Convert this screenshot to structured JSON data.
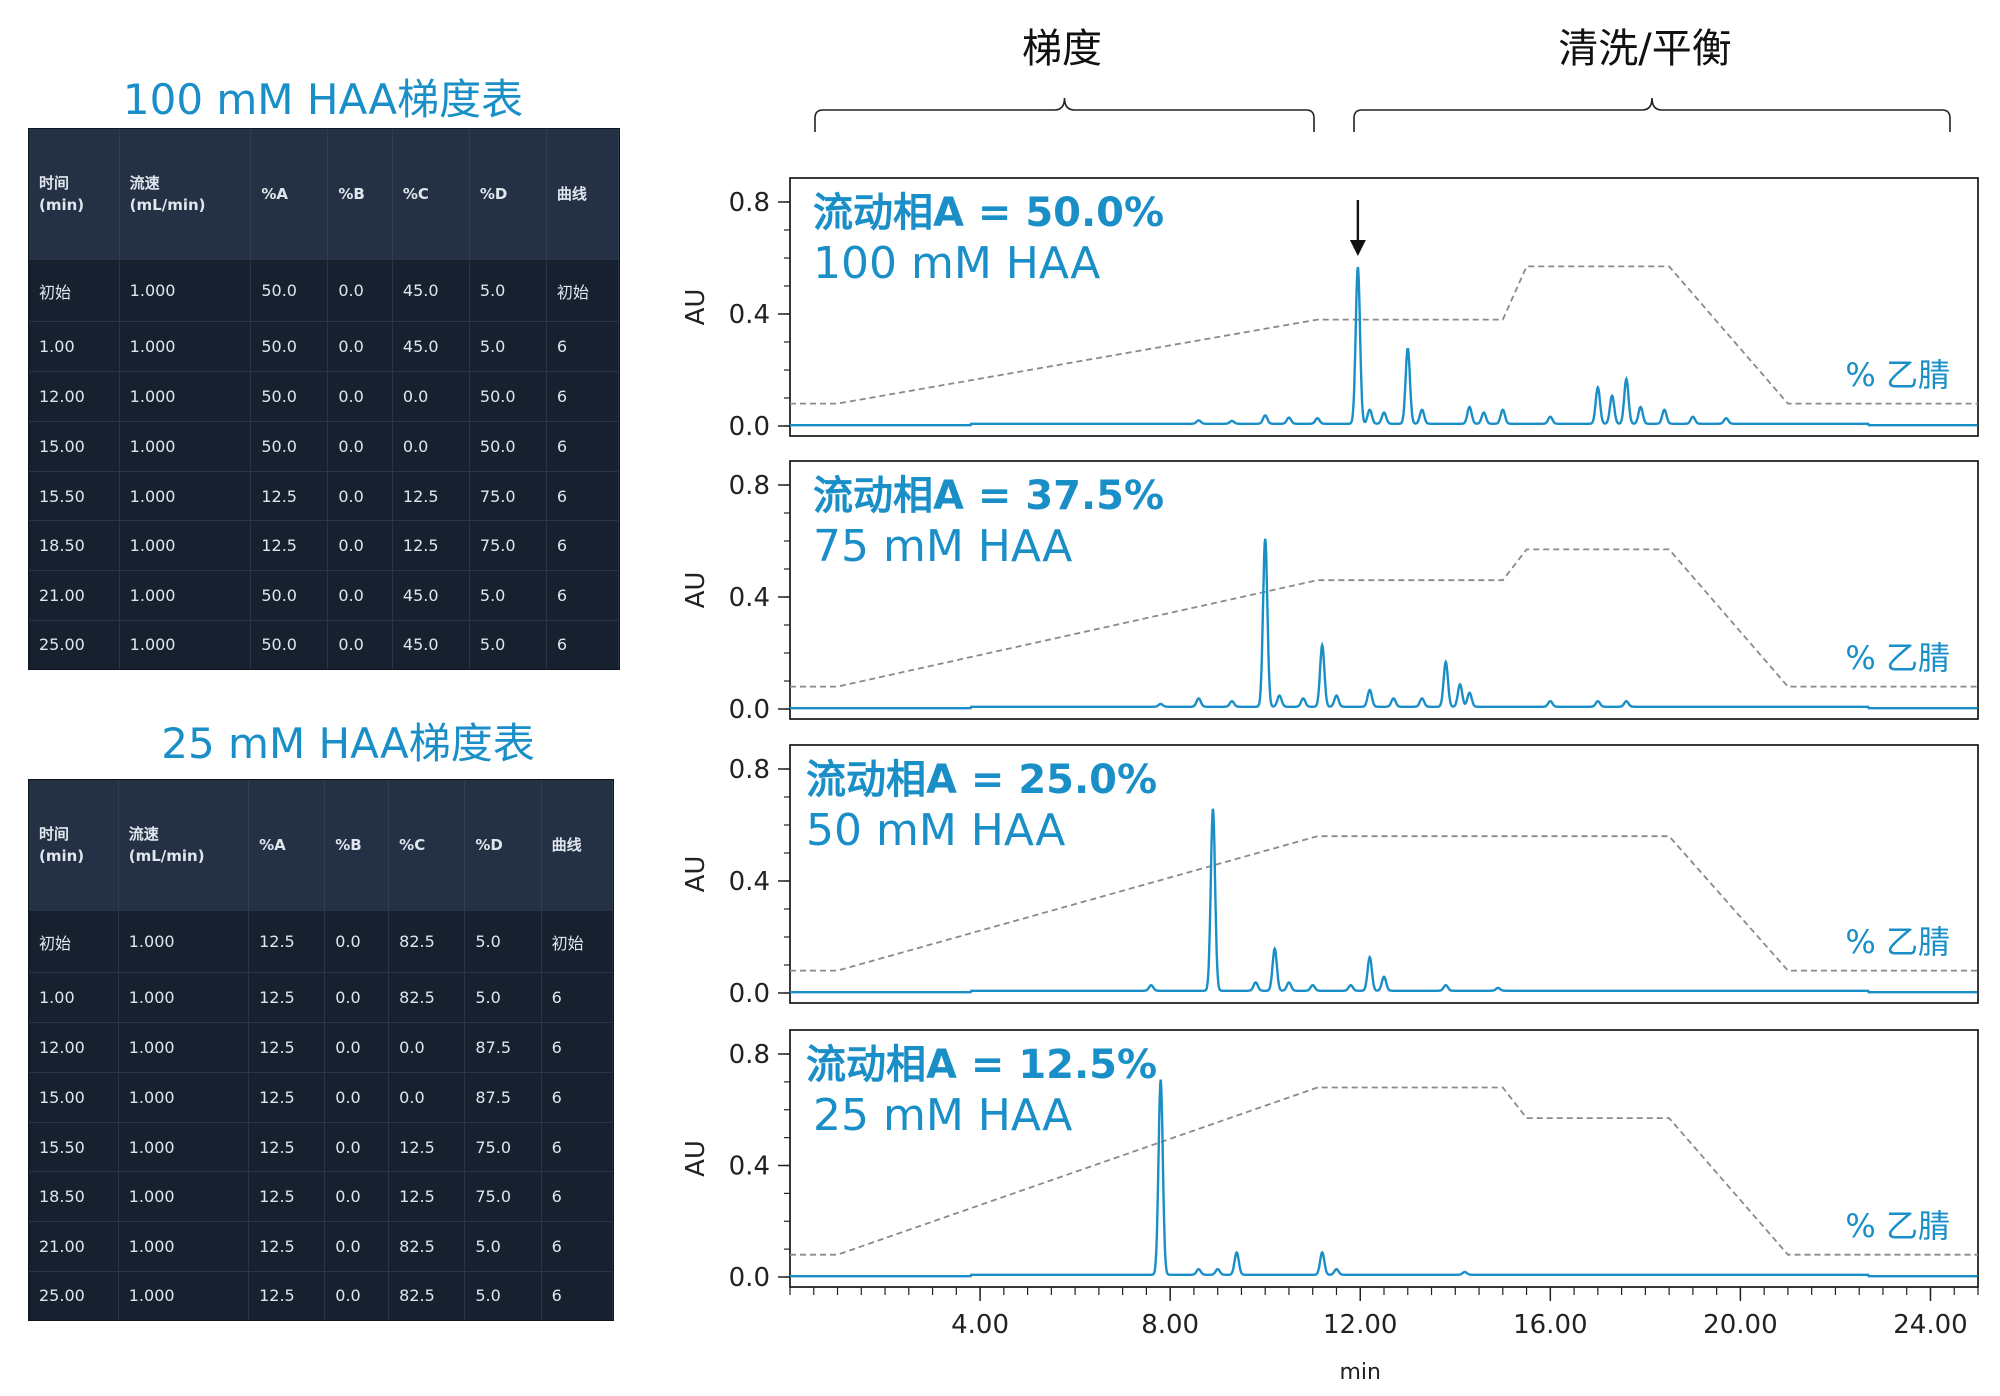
{
  "section_labels": {
    "gradient": "梯度",
    "wash": "清洗/平衡"
  },
  "tables": [
    {
      "title": "100 mM HAA梯度表",
      "headers": [
        "时间\n(min)",
        "流速\n(mL/min)",
        "%A",
        "%B",
        "%C",
        "%D",
        "曲线"
      ],
      "rows": [
        [
          "初始",
          "1.000",
          "50.0",
          "0.0",
          "45.0",
          "5.0",
          "初始"
        ],
        [
          "1.00",
          "1.000",
          "50.0",
          "0.0",
          "45.0",
          "5.0",
          "6"
        ],
        [
          "12.00",
          "1.000",
          "50.0",
          "0.0",
          "0.0",
          "50.0",
          "6"
        ],
        [
          "15.00",
          "1.000",
          "50.0",
          "0.0",
          "0.0",
          "50.0",
          "6"
        ],
        [
          "15.50",
          "1.000",
          "12.5",
          "0.0",
          "12.5",
          "75.0",
          "6"
        ],
        [
          "18.50",
          "1.000",
          "12.5",
          "0.0",
          "12.5",
          "75.0",
          "6"
        ],
        [
          "21.00",
          "1.000",
          "50.0",
          "0.0",
          "45.0",
          "5.0",
          "6"
        ],
        [
          "25.00",
          "1.000",
          "50.0",
          "0.0",
          "45.0",
          "5.0",
          "6"
        ]
      ]
    },
    {
      "title": "25 mM HAA梯度表",
      "headers": [
        "时间\n(min)",
        "流速\n(mL/min)",
        "%A",
        "%B",
        "%C",
        "%D",
        "曲线"
      ],
      "rows": [
        [
          "初始",
          "1.000",
          "12.5",
          "0.0",
          "82.5",
          "5.0",
          "初始"
        ],
        [
          "1.00",
          "1.000",
          "12.5",
          "0.0",
          "82.5",
          "5.0",
          "6"
        ],
        [
          "12.00",
          "1.000",
          "12.5",
          "0.0",
          "0.0",
          "87.5",
          "6"
        ],
        [
          "15.00",
          "1.000",
          "12.5",
          "0.0",
          "0.0",
          "87.5",
          "6"
        ],
        [
          "15.50",
          "1.000",
          "12.5",
          "0.0",
          "12.5",
          "75.0",
          "6"
        ],
        [
          "18.50",
          "1.000",
          "12.5",
          "0.0",
          "12.5",
          "75.0",
          "6"
        ],
        [
          "21.00",
          "1.000",
          "12.5",
          "0.0",
          "82.5",
          "5.0",
          "6"
        ],
        [
          "25.00",
          "1.000",
          "12.5",
          "0.0",
          "82.5",
          "5.0",
          "6"
        ]
      ]
    }
  ],
  "colors": {
    "trace": "#1a8fc7",
    "label": "#1a8fc7",
    "gradient_line": "#8a8a8a",
    "axis": "#222222",
    "table_bg": "#17202e",
    "table_header_bg": "#243044"
  },
  "chart_data": [
    {
      "type": "line",
      "panel_label_bold": "流动相A = 50.0%",
      "panel_label": "100 mM HAA",
      "overlay_label": "% 乙腈",
      "ylabel": "AU",
      "yticks": [
        "0.0",
        "0.4",
        "0.8"
      ],
      "ylim": [
        0,
        0.8
      ],
      "xlim": [
        0,
        25
      ],
      "arrow_at_x": 11.95,
      "chromatogram": {
        "baseline": 0.003,
        "peaks": [
          [
            8.6,
            0.012
          ],
          [
            9.3,
            0.01
          ],
          [
            10.0,
            0.03
          ],
          [
            10.5,
            0.022
          ],
          [
            11.1,
            0.02
          ],
          [
            11.95,
            0.56
          ],
          [
            12.2,
            0.05
          ],
          [
            12.5,
            0.04
          ],
          [
            13.0,
            0.27
          ],
          [
            13.3,
            0.05
          ],
          [
            14.3,
            0.06
          ],
          [
            14.6,
            0.04
          ],
          [
            15.0,
            0.05
          ],
          [
            16.0,
            0.025
          ],
          [
            17.0,
            0.13
          ],
          [
            17.3,
            0.1
          ],
          [
            17.6,
            0.16
          ],
          [
            17.9,
            0.06
          ],
          [
            18.4,
            0.05
          ],
          [
            19.0,
            0.025
          ],
          [
            19.7,
            0.02
          ]
        ]
      },
      "gradient_profile": {
        "x": [
          0,
          1,
          11.1,
          12,
          15,
          15.5,
          18.5,
          21,
          25
        ],
        "y": [
          0.08,
          0.08,
          0.38,
          0.38,
          0.38,
          0.57,
          0.57,
          0.08,
          0.08
        ]
      }
    },
    {
      "type": "line",
      "panel_label_bold": "流动相A = 37.5%",
      "panel_label": "75 mM HAA",
      "overlay_label": "% 乙腈",
      "ylabel": "AU",
      "yticks": [
        "0.0",
        "0.4",
        "0.8"
      ],
      "ylim": [
        0,
        0.8
      ],
      "xlim": [
        0,
        25
      ],
      "chromatogram": {
        "baseline": 0.003,
        "peaks": [
          [
            7.8,
            0.01
          ],
          [
            8.6,
            0.03
          ],
          [
            9.3,
            0.02
          ],
          [
            10.0,
            0.6
          ],
          [
            10.3,
            0.04
          ],
          [
            10.8,
            0.03
          ],
          [
            11.2,
            0.22
          ],
          [
            11.5,
            0.04
          ],
          [
            12.2,
            0.06
          ],
          [
            12.7,
            0.03
          ],
          [
            13.3,
            0.03
          ],
          [
            13.8,
            0.16
          ],
          [
            14.1,
            0.08
          ],
          [
            14.3,
            0.05
          ],
          [
            16.0,
            0.02
          ],
          [
            17.0,
            0.02
          ],
          [
            17.6,
            0.02
          ]
        ]
      },
      "gradient_profile": {
        "x": [
          0,
          1,
          11.1,
          12,
          15,
          15.5,
          18.5,
          21,
          25
        ],
        "y": [
          0.08,
          0.08,
          0.46,
          0.46,
          0.46,
          0.57,
          0.57,
          0.08,
          0.08
        ]
      }
    },
    {
      "type": "line",
      "panel_label_bold": "流动相A = 25.0%",
      "panel_label": "50 mM HAA",
      "overlay_label": "% 乙腈",
      "ylabel": "AU",
      "yticks": [
        "0.0",
        "0.4",
        "0.8"
      ],
      "ylim": [
        0,
        0.8
      ],
      "xlim": [
        0,
        25
      ],
      "chromatogram": {
        "baseline": 0.003,
        "peaks": [
          [
            7.6,
            0.02
          ],
          [
            8.9,
            0.65
          ],
          [
            9.8,
            0.03
          ],
          [
            10.2,
            0.15
          ],
          [
            10.5,
            0.03
          ],
          [
            11.0,
            0.02
          ],
          [
            11.8,
            0.02
          ],
          [
            12.2,
            0.12
          ],
          [
            12.5,
            0.05
          ],
          [
            13.8,
            0.02
          ],
          [
            14.9,
            0.01
          ]
        ]
      },
      "gradient_profile": {
        "x": [
          0,
          1,
          11.1,
          12,
          15,
          15.5,
          18.5,
          21,
          25
        ],
        "y": [
          0.08,
          0.08,
          0.56,
          0.56,
          0.56,
          0.56,
          0.56,
          0.08,
          0.08
        ]
      }
    },
    {
      "type": "line",
      "panel_label_bold": "流动相A = 12.5%",
      "panel_label": "25 mM HAA",
      "overlay_label": "% 乙腈",
      "ylabel": "AU",
      "yticks": [
        "0.0",
        "0.4",
        "0.8"
      ],
      "ylim": [
        0,
        0.8
      ],
      "xlim": [
        0,
        25
      ],
      "xticks": [
        "4.00",
        "8.00",
        "12.00",
        "16.00",
        "20.00",
        "24.00"
      ],
      "xlabel": "min",
      "chromatogram": {
        "baseline": 0.003,
        "peaks": [
          [
            7.8,
            0.7
          ],
          [
            8.6,
            0.02
          ],
          [
            9.0,
            0.02
          ],
          [
            9.4,
            0.08
          ],
          [
            11.2,
            0.08
          ],
          [
            11.5,
            0.02
          ],
          [
            14.2,
            0.01
          ]
        ]
      },
      "gradient_profile": {
        "x": [
          0,
          1,
          11.1,
          12,
          15,
          15.5,
          18.5,
          21,
          25
        ],
        "y": [
          0.08,
          0.08,
          0.68,
          0.68,
          0.68,
          0.57,
          0.57,
          0.08,
          0.08
        ]
      }
    }
  ]
}
